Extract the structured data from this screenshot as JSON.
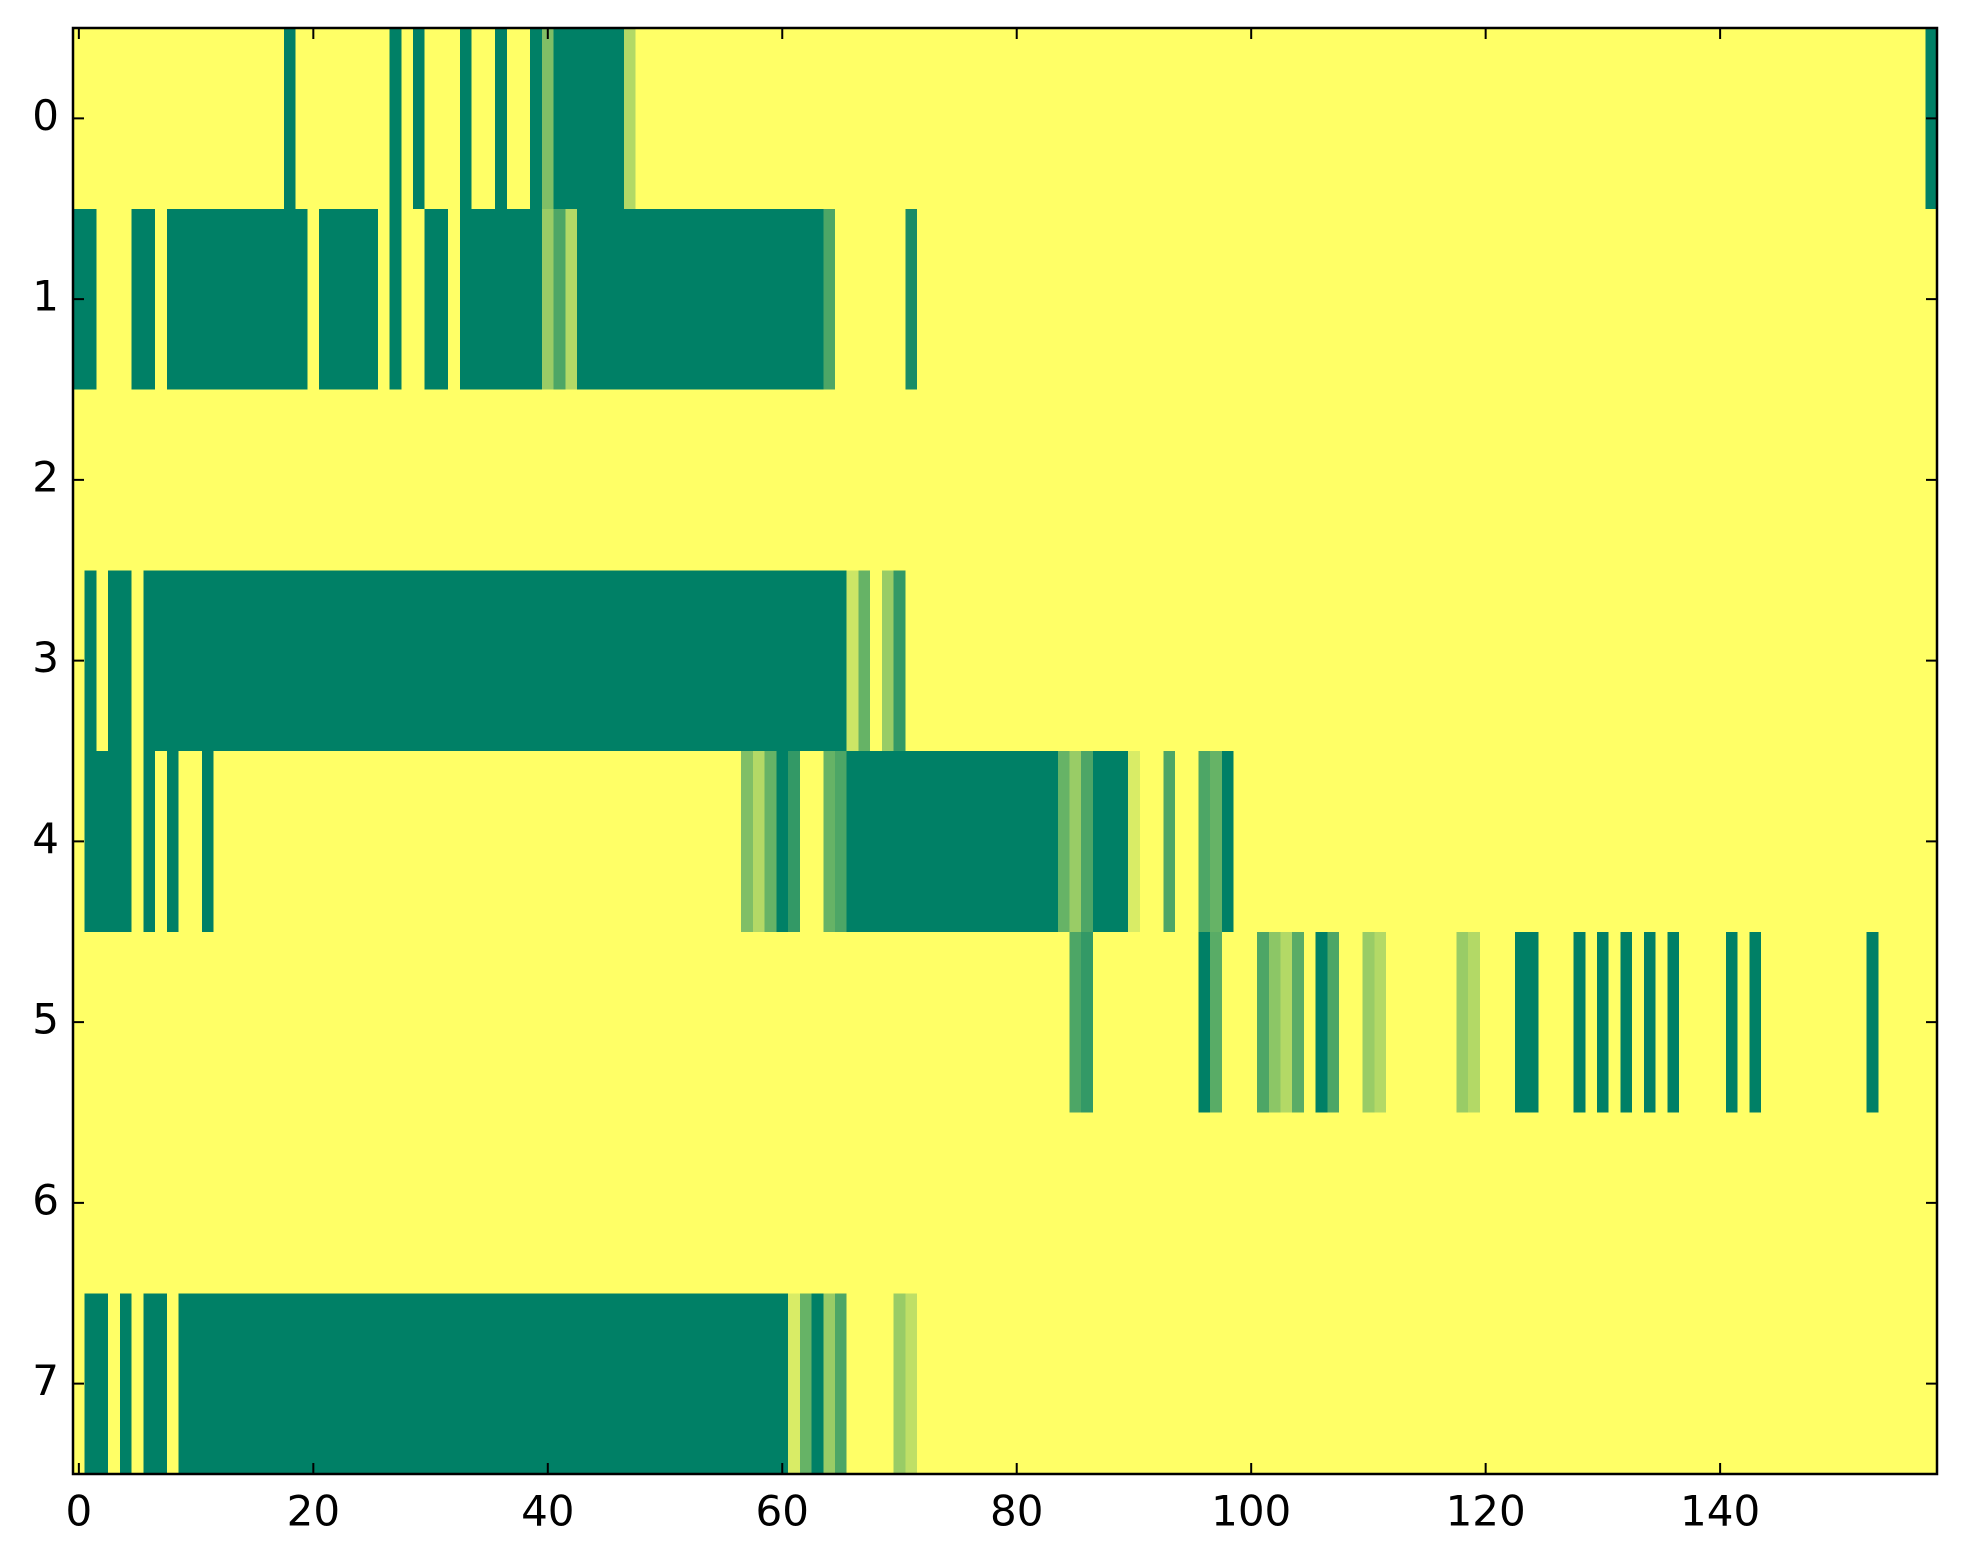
{
  "chart_data": {
    "type": "heatmap",
    "colormap": "summer",
    "zlim": [
      0,
      1
    ],
    "xlim": [
      -0.5,
      158.5
    ],
    "ylim": [
      7.5,
      -0.5
    ],
    "xticks": [
      0,
      20,
      40,
      60,
      80,
      100,
      120,
      140
    ],
    "yticks": [
      0,
      1,
      2,
      3,
      4,
      5,
      6,
      7
    ],
    "z": [
      [
        1,
        1,
        1,
        1,
        1,
        1,
        1,
        1,
        1,
        1,
        1,
        1,
        1,
        1,
        1,
        1,
        1,
        1,
        0,
        1,
        1,
        1,
        1,
        1,
        1,
        1,
        1,
        0,
        1,
        0,
        1,
        1,
        1,
        0,
        1,
        1,
        0,
        1,
        1,
        0,
        0.5,
        0,
        0,
        0,
        0,
        0,
        0,
        0.7,
        1,
        1,
        1,
        1,
        1,
        1,
        1,
        1,
        1,
        1,
        1,
        1,
        1,
        1,
        1,
        1,
        1,
        1,
        1,
        1,
        1,
        1,
        1,
        1,
        1,
        1,
        1,
        1,
        1,
        1,
        1,
        1,
        1,
        1,
        1,
        1,
        1,
        1,
        1,
        1,
        1,
        1,
        1,
        1,
        1,
        1,
        1,
        1,
        1,
        1,
        1,
        1,
        1,
        1,
        1,
        1,
        1,
        1,
        1,
        1,
        1,
        1,
        1,
        1,
        1,
        1,
        1,
        1,
        1,
        1,
        1,
        1,
        1,
        1,
        1,
        1,
        1,
        1,
        1,
        1,
        1,
        1,
        1,
        1,
        1,
        1,
        1,
        1,
        1,
        1,
        1,
        1,
        1,
        1,
        1,
        1,
        1,
        1,
        1,
        1,
        1,
        1,
        1,
        1,
        1,
        1,
        1,
        1,
        1,
        1,
        0
      ],
      [
        0,
        0,
        1,
        1,
        1,
        0,
        0,
        1,
        0,
        0,
        0,
        0,
        0,
        0,
        0,
        0,
        0,
        0,
        0,
        0,
        1,
        0,
        0,
        0,
        0,
        0,
        1,
        0,
        1,
        1,
        0,
        0,
        1,
        0,
        0,
        0,
        0,
        0,
        0,
        0,
        0.6,
        0.3,
        0.7,
        0,
        0,
        0,
        0,
        0,
        0,
        0,
        0,
        0,
        0,
        0,
        0,
        0,
        0,
        0,
        0,
        0,
        0,
        0,
        0,
        0,
        0.3,
        1,
        1,
        1,
        1,
        1,
        1,
        0.1,
        1,
        1,
        1,
        1,
        1,
        1,
        1,
        1,
        1,
        1,
        1,
        1,
        1,
        1,
        1,
        1,
        1,
        1,
        1,
        1,
        1,
        1,
        1,
        1,
        1,
        1,
        1,
        1,
        1,
        1,
        1,
        1,
        1,
        1,
        1,
        1,
        1,
        1,
        1,
        1,
        1,
        1,
        1,
        1,
        1,
        1,
        1,
        1,
        1,
        1,
        1,
        1,
        1,
        1,
        1,
        1,
        1,
        1,
        1,
        1,
        1,
        1,
        1,
        1,
        1,
        1,
        1,
        1,
        1,
        1,
        1,
        1,
        1,
        1,
        1,
        1,
        1,
        1,
        1,
        1,
        1,
        1,
        1,
        1,
        1,
        1,
        1
      ],
      [
        1,
        1,
        1,
        1,
        1,
        1,
        1,
        1,
        1,
        1,
        1,
        1,
        1,
        1,
        1,
        1,
        1,
        1,
        1,
        1,
        1,
        1,
        1,
        1,
        1,
        1,
        1,
        1,
        1,
        1,
        1,
        1,
        1,
        1,
        1,
        1,
        1,
        1,
        1,
        1,
        1,
        1,
        1,
        1,
        1,
        1,
        1,
        1,
        1,
        1,
        1,
        1,
        1,
        1,
        1,
        1,
        1,
        1,
        1,
        1,
        1,
        1,
        1,
        1,
        1,
        1,
        1,
        1,
        1,
        1,
        1,
        1,
        1,
        1,
        1,
        1,
        1,
        1,
        1,
        1,
        1,
        1,
        1,
        1,
        1,
        1,
        1,
        1,
        1,
        1,
        1,
        1,
        1,
        1,
        1,
        1,
        1,
        1,
        1,
        1,
        1,
        1,
        1,
        1,
        1,
        1,
        1,
        1,
        1,
        1,
        1,
        1,
        1,
        1,
        1,
        1,
        1,
        1,
        1,
        1,
        1,
        1,
        1,
        1,
        1,
        1,
        1,
        1,
        1,
        1,
        1,
        1,
        1,
        1,
        1,
        1,
        1,
        1,
        1,
        1,
        1,
        1,
        1,
        1,
        1,
        1,
        1,
        1,
        1,
        1,
        1,
        1,
        1,
        1,
        1,
        1,
        1,
        1,
        1
      ],
      [
        1,
        0,
        1,
        0,
        0,
        1,
        0,
        0,
        0,
        0,
        0,
        0,
        0,
        0,
        0,
        0,
        0,
        0,
        0,
        0,
        0,
        0,
        0,
        0,
        0,
        0,
        0,
        0,
        0,
        0,
        0,
        0,
        0,
        0,
        0,
        0,
        0,
        0,
        0,
        0,
        0,
        0,
        0,
        0,
        0,
        0,
        0,
        0,
        0,
        0,
        0,
        0,
        0,
        0,
        0,
        0,
        0,
        0,
        0,
        0,
        0,
        0,
        0,
        0,
        0,
        0,
        0.8,
        0.4,
        1,
        0.6,
        0.2,
        1,
        1,
        1,
        1,
        1,
        1,
        1,
        1,
        1,
        1,
        1,
        1,
        1,
        1,
        1,
        1,
        1,
        1,
        1,
        1,
        1,
        1,
        1,
        1,
        1,
        1,
        1,
        1,
        1,
        1,
        1,
        1,
        1,
        1,
        1,
        1,
        1,
        1,
        1,
        1,
        1,
        1,
        1,
        1,
        1,
        1,
        1,
        1,
        1,
        1,
        1,
        1,
        1,
        1,
        1,
        1,
        1,
        1,
        1,
        1,
        1,
        1,
        1,
        1,
        1,
        1,
        1,
        1,
        1,
        1,
        1,
        1,
        1,
        1,
        1,
        1,
        1,
        1,
        1,
        1,
        1,
        1,
        1,
        1,
        1,
        1,
        1,
        1
      ],
      [
        1,
        0,
        0,
        0,
        0,
        1,
        0,
        1,
        0,
        1,
        1,
        0,
        1,
        1,
        1,
        1,
        1,
        1,
        1,
        1,
        1,
        1,
        1,
        1,
        1,
        1,
        1,
        1,
        1,
        1,
        1,
        1,
        1,
        1,
        1,
        1,
        1,
        1,
        1,
        1,
        1,
        1,
        1,
        1,
        1,
        1,
        1,
        1,
        1,
        1,
        1,
        1,
        1,
        1,
        1,
        1,
        1,
        0.5,
        0.7,
        0.4,
        0,
        0.2,
        1,
        1,
        0.4,
        0.3,
        0,
        0,
        0,
        0,
        0,
        0,
        0,
        0,
        0,
        0,
        0,
        0,
        0,
        0,
        0,
        0,
        0,
        0,
        0.4,
        0.6,
        0.3,
        0,
        0,
        0,
        0.85,
        1,
        1,
        0.3,
        1,
        1,
        0.3,
        0.4,
        0,
        1,
        1,
        1,
        1,
        1,
        1,
        1,
        1,
        1,
        1,
        1,
        1,
        1,
        1,
        1,
        1,
        1,
        1,
        1,
        1,
        1,
        1,
        1,
        1,
        1,
        1,
        1,
        1,
        1,
        1,
        1,
        1,
        1,
        1,
        1,
        1,
        1,
        1,
        1,
        1,
        1,
        1,
        1,
        1,
        1,
        1,
        1,
        1,
        1,
        1,
        1,
        1,
        1,
        1,
        1,
        1,
        1,
        1,
        1,
        1
      ],
      [
        1,
        1,
        1,
        1,
        1,
        1,
        1,
        1,
        1,
        1,
        1,
        1,
        1,
        1,
        1,
        1,
        1,
        1,
        1,
        1,
        1,
        1,
        1,
        1,
        1,
        1,
        1,
        1,
        1,
        1,
        1,
        1,
        1,
        1,
        1,
        1,
        1,
        1,
        1,
        1,
        1,
        1,
        1,
        1,
        1,
        1,
        1,
        1,
        1,
        1,
        1,
        1,
        1,
        1,
        1,
        1,
        1,
        1,
        1,
        1,
        1,
        1,
        1,
        1,
        1,
        1,
        1,
        1,
        1,
        1,
        1,
        1,
        1,
        1,
        1,
        1,
        1,
        1,
        1,
        1,
        1,
        1,
        1,
        1,
        1,
        0.3,
        0.2,
        1,
        1,
        1,
        1,
        1,
        1,
        1,
        1,
        1,
        0,
        0.35,
        1,
        1,
        1,
        0.3,
        0.55,
        0.7,
        0.35,
        1,
        0,
        0.3,
        1,
        1,
        0.6,
        0.7,
        1,
        1,
        1,
        1,
        1,
        1,
        0.6,
        0.7,
        1,
        1,
        1,
        0,
        0,
        1,
        1,
        1,
        0,
        1,
        0,
        1,
        0,
        1,
        0,
        1,
        0,
        1,
        1,
        1,
        1,
        0,
        1,
        0,
        1,
        1,
        1,
        1,
        1,
        1,
        1,
        1,
        1,
        0,
        1,
        1,
        1,
        1,
        1
      ],
      [
        1,
        1,
        1,
        1,
        1,
        1,
        1,
        1,
        1,
        1,
        1,
        1,
        1,
        1,
        1,
        1,
        1,
        1,
        1,
        1,
        1,
        1,
        1,
        1,
        1,
        1,
        1,
        1,
        1,
        1,
        1,
        1,
        1,
        1,
        1,
        1,
        1,
        1,
        1,
        1,
        1,
        1,
        1,
        1,
        1,
        1,
        1,
        1,
        1,
        1,
        1,
        1,
        1,
        1,
        1,
        1,
        1,
        1,
        1,
        1,
        1,
        1,
        1,
        1,
        1,
        1,
        1,
        1,
        1,
        1,
        1,
        1,
        1,
        1,
        1,
        1,
        1,
        1,
        1,
        1,
        1,
        1,
        1,
        1,
        1,
        1,
        1,
        1,
        1,
        1,
        1,
        1,
        1,
        1,
        1,
        1,
        1,
        1,
        1,
        1,
        1,
        1,
        1,
        1,
        1,
        1,
        1,
        1,
        1,
        1,
        1,
        1,
        1,
        1,
        1,
        1,
        1,
        1,
        1,
        1,
        1,
        1,
        1,
        1,
        1,
        1,
        1,
        1,
        1,
        1,
        1,
        1,
        1,
        1,
        1,
        1,
        1,
        1,
        1,
        1,
        1,
        1,
        1,
        1,
        1,
        1,
        1,
        1,
        1,
        1,
        1,
        1,
        1,
        1,
        1,
        1,
        1,
        1,
        1
      ],
      [
        1,
        0,
        0,
        1,
        0,
        1,
        0,
        0,
        1,
        0,
        0,
        0,
        0,
        0,
        0,
        0,
        0,
        0,
        0,
        0,
        0,
        0,
        0,
        0,
        0,
        0,
        0,
        0,
        0,
        0,
        0,
        0,
        0,
        0,
        0,
        0,
        0,
        0,
        0,
        0,
        0,
        0,
        0,
        0,
        0,
        0,
        0,
        0,
        0,
        0,
        0,
        0,
        0,
        0,
        0,
        0,
        0,
        0,
        0,
        0,
        0,
        0.85,
        0.4,
        0,
        0.6,
        0.3,
        1,
        1,
        1,
        1,
        0.6,
        0.75,
        1,
        1,
        1,
        1,
        1,
        1,
        1,
        1,
        1,
        1,
        1,
        1,
        1,
        1,
        1,
        1,
        1,
        1,
        1,
        1,
        1,
        1,
        1,
        1,
        1,
        1,
        1,
        1,
        1,
        1,
        1,
        1,
        1,
        1,
        1,
        1,
        1,
        1,
        1,
        1,
        1,
        1,
        1,
        1,
        1,
        1,
        1,
        1,
        1,
        1,
        1,
        1,
        1,
        1,
        1,
        1,
        1,
        1,
        1,
        1,
        1,
        1,
        1,
        1,
        1,
        1,
        1,
        1,
        1,
        1,
        1,
        1,
        1,
        1,
        1,
        1,
        1,
        1,
        1,
        1,
        1,
        1,
        1,
        1,
        1,
        1,
        1
      ]
    ]
  }
}
